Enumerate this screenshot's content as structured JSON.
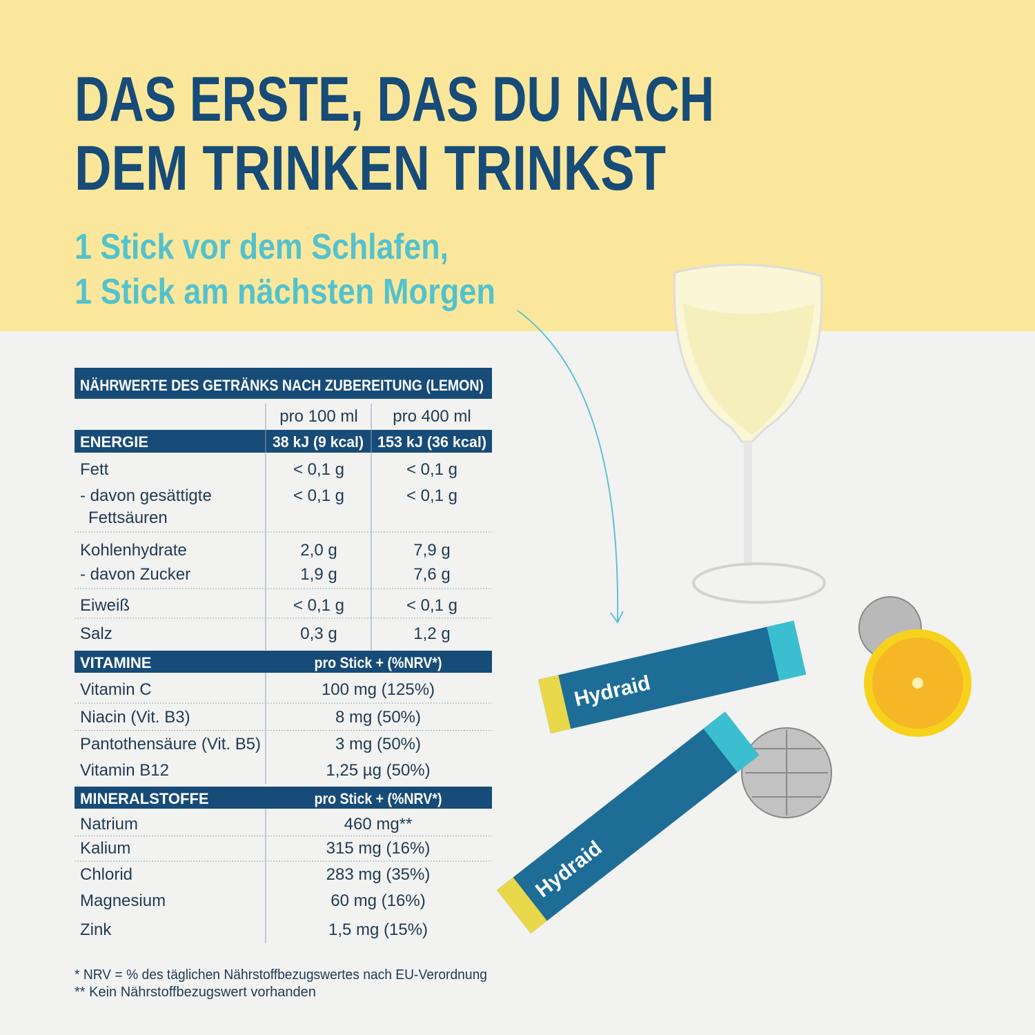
{
  "headline": [
    "DAS ERSTE, DAS DU NACH",
    "DEM TRINKEN TRINKST"
  ],
  "subtitle": [
    "1 Stick vor dem Schlafen,",
    "1 Stick am nächsten Morgen"
  ],
  "table": {
    "title": "NÄHRWERTE DES GETRÄNKS NACH ZUBEREITUNG (LEMON)",
    "columns": [
      "pro 100 ml",
      "pro 400 ml"
    ],
    "energy": {
      "label": "ENERGIE",
      "values": [
        "38 kJ (9 kcal)",
        "153 kJ (36 kcal)"
      ]
    },
    "rows": [
      {
        "label": [
          "Fett"
        ],
        "values": [
          "< 0,1 g",
          "< 0,1 g"
        ]
      },
      {
        "label": [
          "- davon gesättigte",
          "Fettsäuren"
        ],
        "values": [
          "< 0,1 g",
          "< 0,1 g"
        ]
      },
      {
        "label": [
          "Kohlenhydrate"
        ],
        "values": [
          "2,0 g",
          "7,9 g"
        ]
      },
      {
        "label": [
          "- davon Zucker"
        ],
        "values": [
          "1,9 g",
          "7,6 g"
        ]
      },
      {
        "label": [
          "Eiweiß"
        ],
        "values": [
          "< 0,1 g",
          "< 0,1 g"
        ]
      },
      {
        "label": [
          "Salz"
        ],
        "values": [
          "0,3 g",
          "1,2 g"
        ]
      }
    ],
    "vitamins": {
      "label": "VITAMINE",
      "header": "pro Stick + (%NRV*)",
      "rows": [
        [
          "Vitamin C",
          "100 mg (125%)"
        ],
        [
          "Niacin (Vit. B3)",
          "8 mg (50%)"
        ],
        [
          "Pantothensäure (Vit. B5)",
          "3 mg (50%)"
        ],
        [
          "Vitamin B12",
          "1,25 µg (50%)"
        ]
      ]
    },
    "minerals": {
      "label": "MINERALSTOFFE",
      "header": "pro Stick + (%NRV*)",
      "rows": [
        [
          "Natrium",
          "460 mg**"
        ],
        [
          "Kalium",
          "315 mg (16%)"
        ],
        [
          "Chlorid",
          "283 mg (35%)"
        ],
        [
          "Magnesium",
          "60 mg (16%)"
        ],
        [
          "Zink",
          "1,5 mg (15%)"
        ]
      ]
    }
  },
  "footnotes": [
    "* NRV = % des täglichen Nährstoffbezugswertes nach EU-Verordnung",
    "** Kein Nährstoffbezugswert vorhanden"
  ],
  "product": {
    "brand": "Hydraid"
  }
}
